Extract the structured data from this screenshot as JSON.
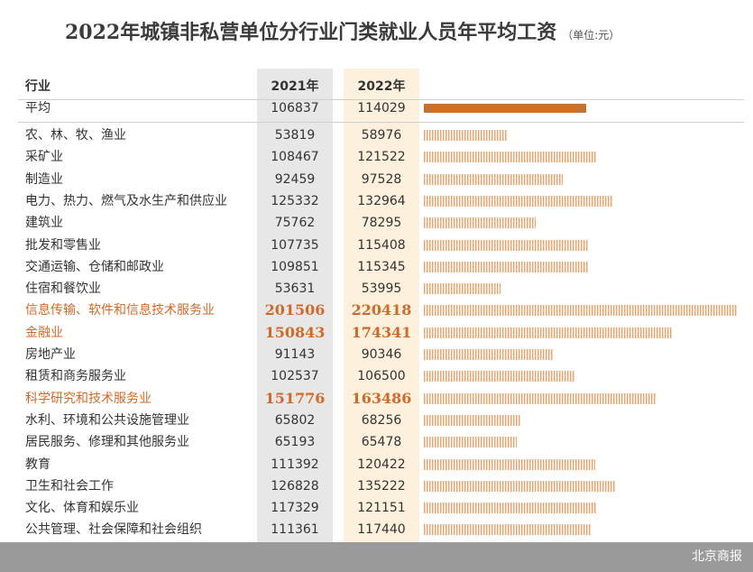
{
  "header": {
    "title": "2022年城镇非私营单位分行业门类就业人员年平均工资",
    "unit": "（单位:元）",
    "col_industry": "行业",
    "col_2021": "2021年",
    "col_2022": "2022年"
  },
  "footer": {
    "source": "北京商报"
  },
  "colors": {
    "accent": "#d06a2a",
    "bar_avg": "#c8722f",
    "bar_stripe": "#e9a572",
    "band_2021": "#e7e7e7",
    "band_2022": "#fdf0dc"
  },
  "chart_data": {
    "type": "bar",
    "orientation": "horizontal",
    "bar_series": "2022年",
    "rows": [
      {
        "name": "平均",
        "v2021": 106837,
        "v2022": 114029,
        "highlight": false,
        "average": true
      },
      {
        "name": "农、林、牧、渔业",
        "v2021": 53819,
        "v2022": 58976,
        "highlight": false
      },
      {
        "name": "采矿业",
        "v2021": 108467,
        "v2022": 121522,
        "highlight": false
      },
      {
        "name": "制造业",
        "v2021": 92459,
        "v2022": 97528,
        "highlight": false
      },
      {
        "name": "电力、热力、燃气及水生产和供应业",
        "v2021": 125332,
        "v2022": 132964,
        "highlight": false
      },
      {
        "name": "建筑业",
        "v2021": 75762,
        "v2022": 78295,
        "highlight": false
      },
      {
        "name": "批发和零售业",
        "v2021": 107735,
        "v2022": 115408,
        "highlight": false
      },
      {
        "name": "交通运输、仓储和邮政业",
        "v2021": 109851,
        "v2022": 115345,
        "highlight": false
      },
      {
        "name": "住宿和餐饮业",
        "v2021": 53631,
        "v2022": 53995,
        "highlight": false
      },
      {
        "name": "信息传输、软件和信息技术服务业",
        "v2021": 201506,
        "v2022": 220418,
        "highlight": true
      },
      {
        "name": "金融业",
        "v2021": 150843,
        "v2022": 174341,
        "highlight": true
      },
      {
        "name": "房地产业",
        "v2021": 91143,
        "v2022": 90346,
        "highlight": false
      },
      {
        "name": "租赁和商务服务业",
        "v2021": 102537,
        "v2022": 106500,
        "highlight": false
      },
      {
        "name": "科学研究和技术服务业",
        "v2021": 151776,
        "v2022": 163486,
        "highlight": true
      },
      {
        "name": "水利、环境和公共设施管理业",
        "v2021": 65802,
        "v2022": 68256,
        "highlight": false
      },
      {
        "name": "居民服务、修理和其他服务业",
        "v2021": 65193,
        "v2022": 65478,
        "highlight": false
      },
      {
        "name": "教育",
        "v2021": 111392,
        "v2022": 120422,
        "highlight": false
      },
      {
        "name": "卫生和社会工作",
        "v2021": 126828,
        "v2022": 135222,
        "highlight": false
      },
      {
        "name": "文化、体育和娱乐业",
        "v2021": 117329,
        "v2022": 121151,
        "highlight": false
      },
      {
        "name": "公共管理、社会保障和社会组织",
        "v2021": 111361,
        "v2022": 117440,
        "highlight": false
      }
    ]
  }
}
